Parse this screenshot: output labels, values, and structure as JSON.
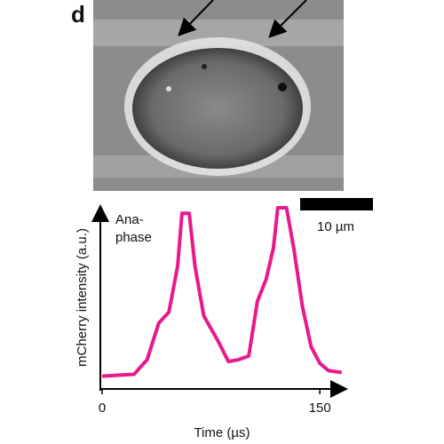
{
  "chart_data": {
    "type": "line",
    "panel_label": "d",
    "scale_bar_label": "10 µm",
    "annotation_lines": [
      "Ana-",
      "phase"
    ],
    "xlabel": "Time (µs)",
    "ylabel": "mCherry intensity (a.u.)",
    "x": [
      0,
      22,
      31,
      39,
      46,
      52,
      55,
      60,
      64,
      70,
      80,
      87,
      94,
      101,
      107,
      113,
      118,
      121,
      127,
      132,
      138,
      144,
      150,
      156,
      165
    ],
    "series": [
      {
        "color": "#e8198b",
        "values": [
          0.07,
          0.08,
          0.16,
          0.36,
          0.42,
          0.67,
          0.96,
          0.96,
          0.67,
          0.4,
          0.26,
          0.15,
          0.16,
          0.18,
          0.48,
          0.6,
          0.77,
          0.99,
          0.99,
          0.77,
          0.45,
          0.23,
          0.14,
          0.1,
          0.09
        ]
      }
    ],
    "xlim": [
      0,
      167
    ],
    "ylim": [
      0,
      1
    ],
    "xticks": [
      0,
      150
    ]
  }
}
